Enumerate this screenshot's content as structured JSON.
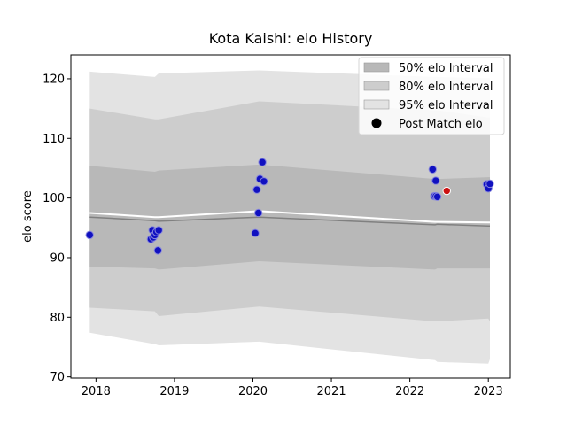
{
  "chart_data": {
    "type": "scatter",
    "title": "Kota Kaishi: elo History",
    "xlabel": "",
    "ylabel": "elo score",
    "xlim": [
      2017.68,
      2023.28
    ],
    "ylim": [
      69.8,
      124.0
    ],
    "x_ticks": [
      2018,
      2019,
      2020,
      2021,
      2022,
      2023
    ],
    "x_tick_labels": [
      "2018",
      "2019",
      "2020",
      "2021",
      "2022",
      "2023"
    ],
    "y_ticks": [
      70,
      80,
      90,
      100,
      110,
      120
    ],
    "y_tick_labels": [
      "70",
      "80",
      "90",
      "100",
      "110",
      "120"
    ],
    "grid": false,
    "legend_position": "top-right",
    "colors": {
      "band_95": "#e3e3e3",
      "band_80": "#cdcdcd",
      "band_50": "#b8b8b8",
      "mean_line": "#808080",
      "median_line": "#ffffff",
      "point_fill": "#1010c0",
      "point_edge": "#8888dd",
      "last_point_fill": "#cc1111",
      "last_point_edge": "#ffffff"
    },
    "bands": {
      "x": [
        2017.92,
        2018.75,
        2018.8,
        2020.08,
        2022.32,
        2022.35,
        2023.0,
        2023.02
      ],
      "p95_upper": [
        121.2,
        120.3,
        120.9,
        121.4,
        120.3,
        120.3,
        120.1,
        120.1
      ],
      "p95_lower": [
        77.4,
        75.5,
        75.3,
        75.9,
        72.8,
        72.5,
        72.2,
        73.0
      ],
      "p80_upper": [
        115.0,
        113.2,
        113.2,
        116.2,
        114.7,
        114.7,
        113.5,
        113.5
      ],
      "p80_lower": [
        81.6,
        81.0,
        80.2,
        81.8,
        79.3,
        79.3,
        79.8,
        79.3
      ],
      "p50_upper": [
        105.4,
        104.4,
        104.6,
        105.6,
        103.2,
        103.2,
        103.5,
        103.5
      ],
      "p50_lower": [
        88.5,
        88.2,
        88.0,
        89.4,
        88.0,
        88.2,
        88.2,
        88.2
      ],
      "mean": [
        96.8,
        96.2,
        96.1,
        96.8,
        95.5,
        95.6,
        95.3,
        95.3
      ],
      "median": [
        97.5,
        96.8,
        96.8,
        97.8,
        96.0,
        96.0,
        95.9,
        95.9
      ]
    },
    "points": {
      "x": [
        2017.92,
        2018.7,
        2018.72,
        2018.73,
        2018.75,
        2018.77,
        2018.79,
        2018.8,
        2020.03,
        2020.05,
        2020.07,
        2020.09,
        2020.12,
        2020.14,
        2022.29,
        2022.31,
        2022.33,
        2022.33,
        2022.35,
        2022.98,
        2023.0,
        2023.02
      ],
      "y": [
        93.8,
        93.1,
        94.6,
        93.4,
        93.8,
        94.3,
        91.2,
        94.6,
        94.1,
        101.4,
        97.5,
        103.2,
        106.0,
        102.8,
        104.8,
        100.3,
        100.3,
        102.9,
        100.2,
        102.3,
        101.6,
        102.4
      ]
    },
    "last_point": {
      "x": 2022.47,
      "y": 101.2
    },
    "series": [
      {
        "name": "50% elo Interval"
      },
      {
        "name": "80% elo Interval"
      },
      {
        "name": "95% elo Interval"
      },
      {
        "name": "Post Match elo"
      }
    ]
  }
}
